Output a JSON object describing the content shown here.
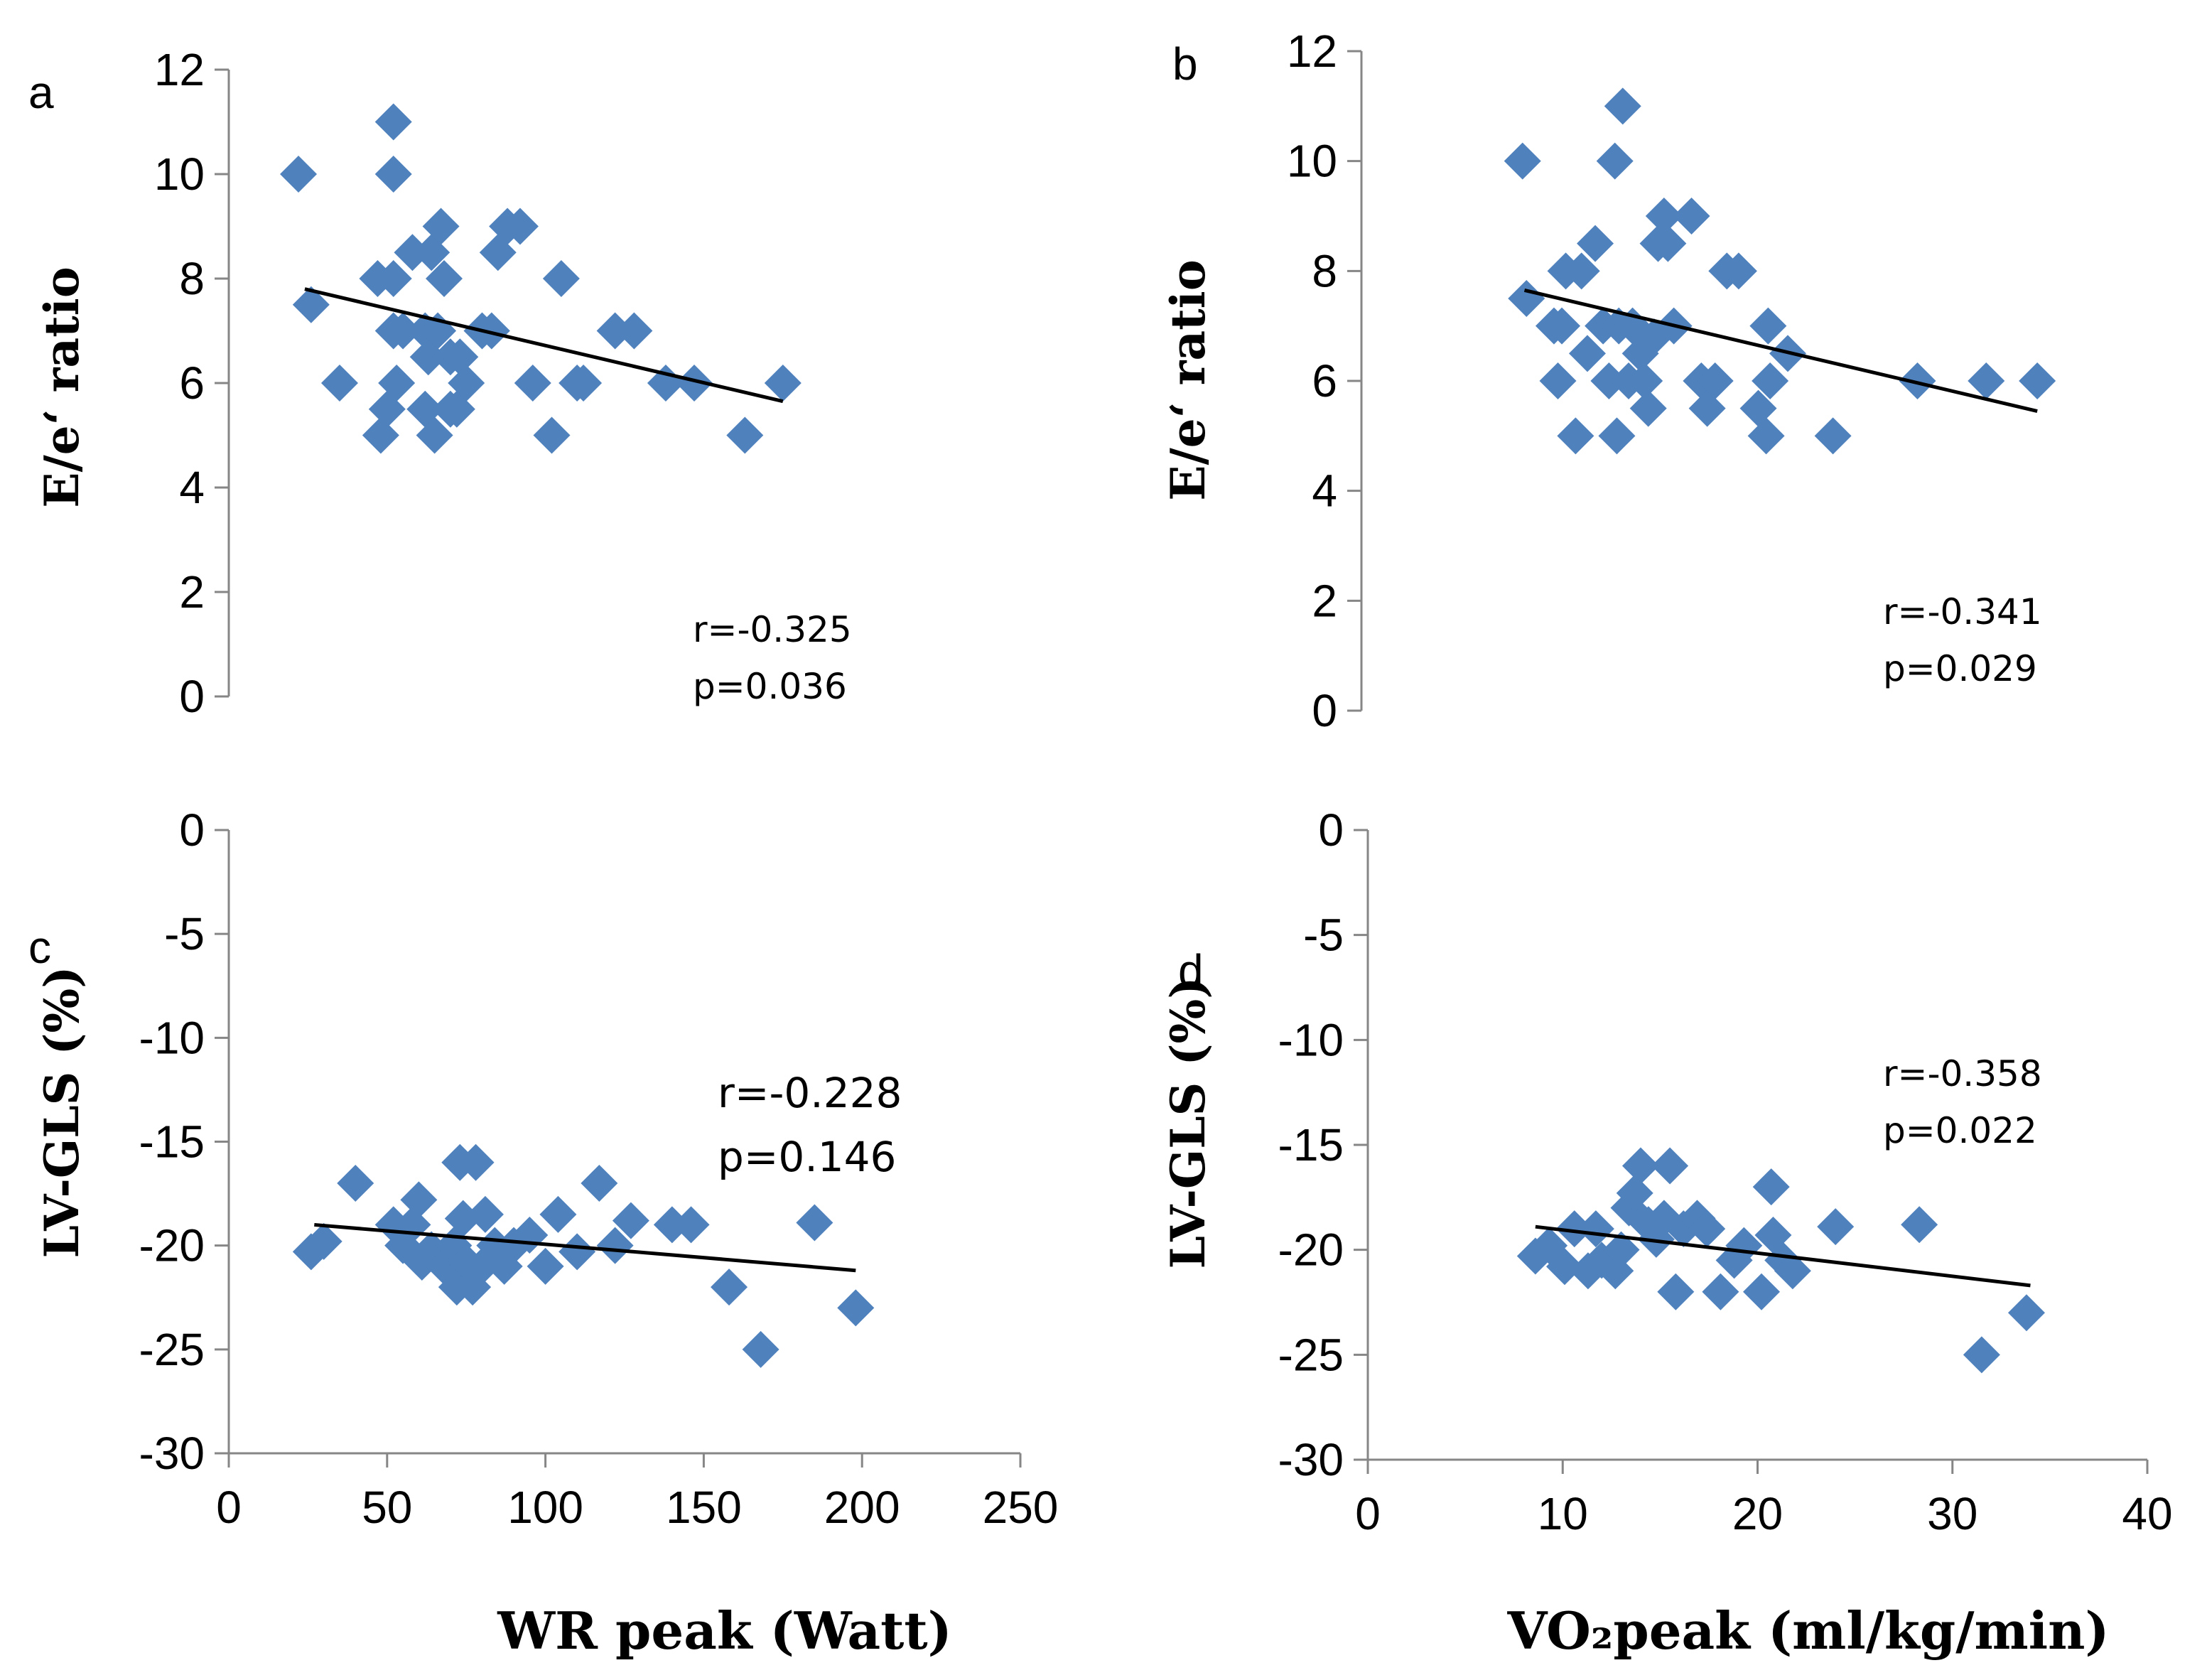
{
  "style": {
    "marker_color": "#4f81bd",
    "trend_color": "#000000"
  },
  "chart_data": [
    {
      "type": "scatter",
      "panel_label": "a",
      "xlabel": "",
      "ylabel": "E/e‘ ratio",
      "xlim": [
        0,
        250
      ],
      "ylim": [
        0,
        12
      ],
      "xticks": [],
      "yticks": [
        0,
        2,
        4,
        6,
        8,
        10,
        12
      ],
      "trendline": [
        [
          24,
          7.8
        ],
        [
          175,
          5.65
        ]
      ],
      "annotation": [
        "r=-0.325",
        "p=0.036"
      ],
      "points": [
        [
          22,
          10
        ],
        [
          26,
          7.5
        ],
        [
          35,
          6
        ],
        [
          47,
          8
        ],
        [
          48,
          5
        ],
        [
          50,
          5.5
        ],
        [
          52,
          11
        ],
        [
          52,
          10
        ],
        [
          52,
          8
        ],
        [
          52,
          7
        ],
        [
          53,
          6
        ],
        [
          55,
          7
        ],
        [
          58,
          8.5
        ],
        [
          62,
          7
        ],
        [
          62,
          5.5
        ],
        [
          63,
          6.5
        ],
        [
          64,
          8.5
        ],
        [
          65,
          5
        ],
        [
          66,
          7
        ],
        [
          67,
          9
        ],
        [
          68,
          8
        ],
        [
          70,
          6.5
        ],
        [
          70,
          5.5
        ],
        [
          72,
          5.5
        ],
        [
          73,
          6.5
        ],
        [
          75,
          6
        ],
        [
          80,
          7
        ],
        [
          83,
          7
        ],
        [
          85,
          8.5
        ],
        [
          88,
          9
        ],
        [
          92,
          9
        ],
        [
          96,
          6
        ],
        [
          102,
          5
        ],
        [
          105,
          8
        ],
        [
          110,
          6
        ],
        [
          112,
          6
        ],
        [
          122,
          7
        ],
        [
          128,
          7
        ],
        [
          138,
          6
        ],
        [
          147,
          6
        ],
        [
          163,
          5
        ],
        [
          175,
          6
        ]
      ]
    },
    {
      "type": "scatter",
      "panel_label": "b",
      "xlabel": "",
      "ylabel": "E/e‘ ratio",
      "xlim": [
        0,
        40
      ],
      "ylim": [
        0,
        12
      ],
      "xticks": [],
      "yticks": [
        0,
        2,
        4,
        6,
        8,
        10,
        12
      ],
      "trendline": [
        [
          8.3,
          7.65
        ],
        [
          34.4,
          5.45
        ]
      ],
      "annotation": [
        "r=-0.341",
        "p=0.029"
      ],
      "points": [
        [
          8.2,
          10
        ],
        [
          8.4,
          7.5
        ],
        [
          9.8,
          7
        ],
        [
          10,
          6
        ],
        [
          10.2,
          7
        ],
        [
          10.4,
          8
        ],
        [
          10.9,
          5
        ],
        [
          11.2,
          8
        ],
        [
          11.5,
          6.5
        ],
        [
          11.9,
          8.5
        ],
        [
          12.3,
          7
        ],
        [
          12.6,
          6
        ],
        [
          12.9,
          10
        ],
        [
          13,
          5
        ],
        [
          13.1,
          7
        ],
        [
          13.3,
          11
        ],
        [
          13.6,
          6
        ],
        [
          13.8,
          7
        ],
        [
          14.2,
          6.5
        ],
        [
          14.4,
          6
        ],
        [
          14.6,
          5.5
        ],
        [
          14.9,
          6.8
        ],
        [
          15.1,
          8.5
        ],
        [
          15.4,
          9
        ],
        [
          15.6,
          8.5
        ],
        [
          15.9,
          7
        ],
        [
          16.8,
          9
        ],
        [
          17.3,
          6
        ],
        [
          17.6,
          5.5
        ],
        [
          18,
          6
        ],
        [
          18.6,
          8
        ],
        [
          19.2,
          8
        ],
        [
          20.2,
          5.5
        ],
        [
          20.6,
          5
        ],
        [
          20.7,
          7
        ],
        [
          20.8,
          6
        ],
        [
          21.7,
          6.5
        ],
        [
          24,
          5
        ],
        [
          28.3,
          6
        ],
        [
          31.8,
          6
        ],
        [
          34.4,
          6
        ]
      ]
    },
    {
      "type": "scatter",
      "panel_label": "c",
      "xlabel": "WR peak (Watt)",
      "ylabel": "LV-GLS (%)",
      "xlim": [
        0,
        250
      ],
      "ylim": [
        -30,
        0
      ],
      "xticks": [
        0,
        50,
        100,
        150,
        200,
        250
      ],
      "yticks": [
        0,
        -5,
        -10,
        -15,
        -20,
        -25,
        -30
      ],
      "trendline": [
        [
          27,
          -19
        ],
        [
          198,
          -21.2
        ]
      ],
      "annotation": [
        "r=-0.228",
        "p=0.146"
      ],
      "points": [
        [
          26,
          -20.3
        ],
        [
          30,
          -19.8
        ],
        [
          40,
          -17
        ],
        [
          52,
          -19
        ],
        [
          55,
          -20
        ],
        [
          58,
          -19
        ],
        [
          60,
          -17.8
        ],
        [
          61,
          -20.8
        ],
        [
          64,
          -20.2
        ],
        [
          68,
          -21
        ],
        [
          71,
          -20
        ],
        [
          72,
          -22
        ],
        [
          73,
          -16
        ],
        [
          74,
          -18.7
        ],
        [
          75,
          -20.8
        ],
        [
          77,
          -22
        ],
        [
          78,
          -16
        ],
        [
          80,
          -21
        ],
        [
          81,
          -18.5
        ],
        [
          84,
          -20
        ],
        [
          87,
          -21
        ],
        [
          90,
          -20
        ],
        [
          95,
          -19.5
        ],
        [
          100,
          -21
        ],
        [
          104,
          -18.5
        ],
        [
          110,
          -20.3
        ],
        [
          117,
          -17
        ],
        [
          122,
          -20
        ],
        [
          127,
          -18.8
        ],
        [
          140,
          -19
        ],
        [
          146,
          -19
        ],
        [
          158,
          -22
        ],
        [
          168,
          -25
        ],
        [
          185,
          -18.9
        ],
        [
          198,
          -23
        ]
      ]
    },
    {
      "type": "scatter",
      "panel_label": "d",
      "xlabel": "VO₂peak (ml/kg/min)",
      "ylabel": "LV-GLS (%)",
      "xlim": [
        0,
        40
      ],
      "ylim": [
        -30,
        0
      ],
      "xticks": [
        0,
        10,
        20,
        30,
        40
      ],
      "yticks": [
        0,
        -5,
        -10,
        -15,
        -20,
        -25,
        -30
      ],
      "trendline": [
        [
          8.6,
          -18.9
        ],
        [
          34,
          -21.7
        ]
      ],
      "annotation": [
        "r=-0.358",
        "p=0.022"
      ],
      "points": [
        [
          8.6,
          -20.3
        ],
        [
          9.3,
          -19.8
        ],
        [
          10.1,
          -20.8
        ],
        [
          10.6,
          -19
        ],
        [
          11.3,
          -21
        ],
        [
          11.7,
          -19
        ],
        [
          12,
          -20.5
        ],
        [
          12.7,
          -21
        ],
        [
          13,
          -20
        ],
        [
          13.4,
          -18
        ],
        [
          13.7,
          -17.3
        ],
        [
          14,
          -16
        ],
        [
          14.4,
          -18.8
        ],
        [
          14.8,
          -19.5
        ],
        [
          15.2,
          -18.5
        ],
        [
          15.5,
          -16
        ],
        [
          15.8,
          -22
        ],
        [
          16.2,
          -19
        ],
        [
          16.9,
          -18.5
        ],
        [
          17.4,
          -19
        ],
        [
          18.1,
          -22
        ],
        [
          18.8,
          -20.5
        ],
        [
          19.3,
          -19.8
        ],
        [
          20.2,
          -22
        ],
        [
          20.7,
          -17
        ],
        [
          20.8,
          -19.3
        ],
        [
          21.3,
          -20.5
        ],
        [
          21.8,
          -21
        ],
        [
          24,
          -18.9
        ],
        [
          28.3,
          -18.8
        ],
        [
          31.5,
          -25
        ],
        [
          33.8,
          -23
        ]
      ]
    }
  ]
}
